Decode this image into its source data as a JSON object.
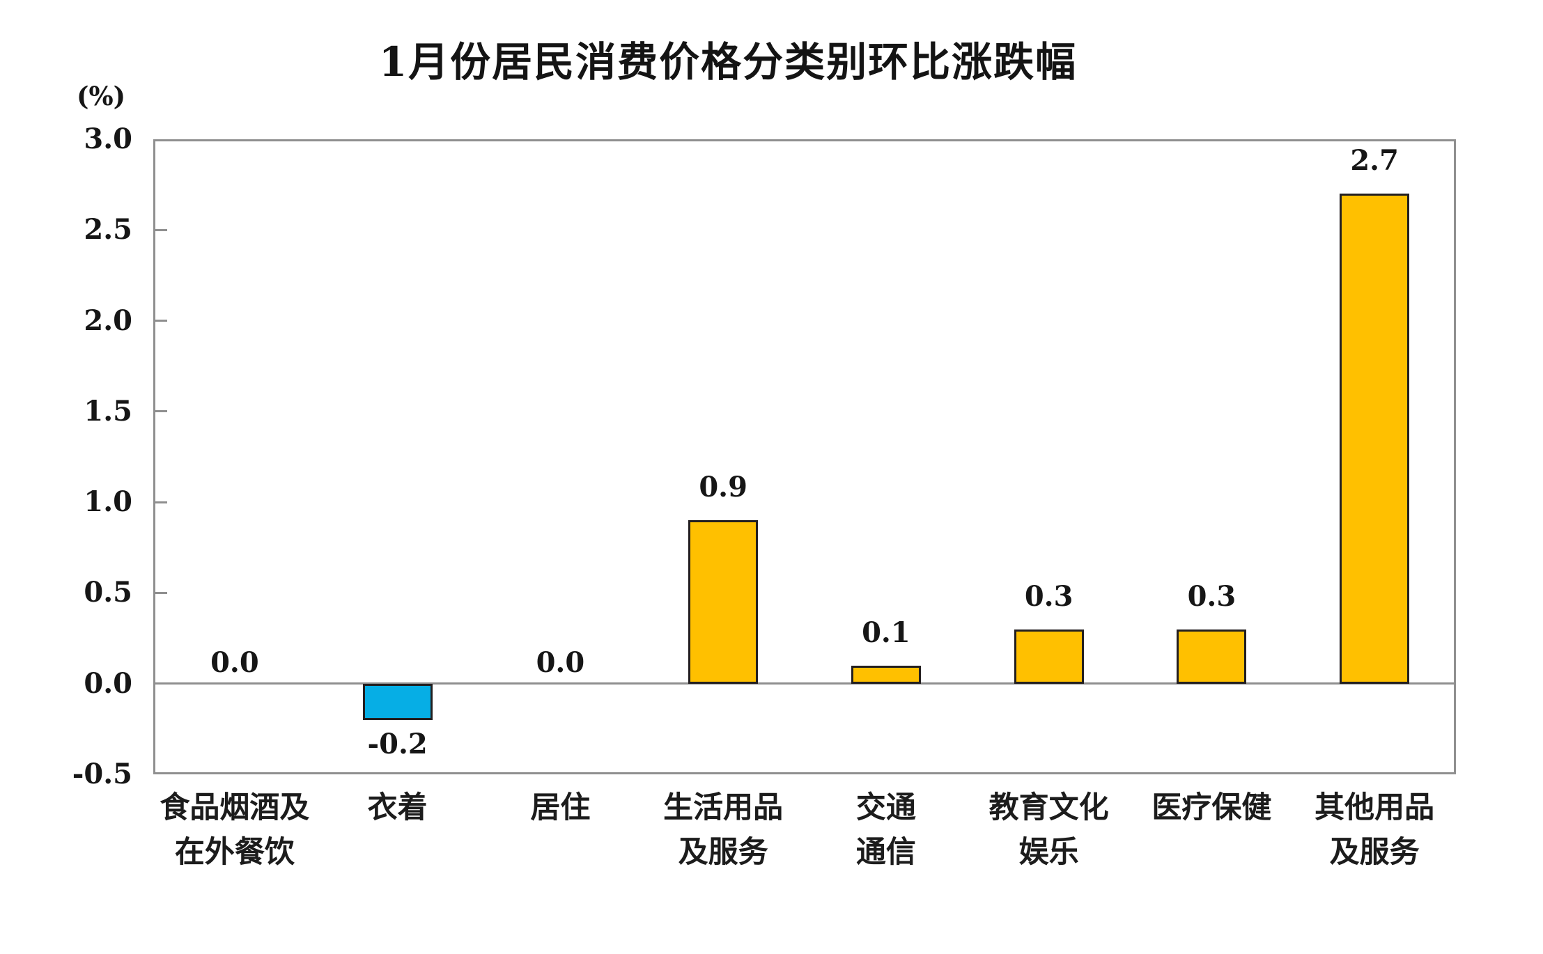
{
  "chart_data": {
    "type": "bar",
    "title": "1月份居民消费价格分类别环比涨跌幅",
    "unit_label": "(%)",
    "categories": [
      {
        "lines": [
          "食品烟酒及",
          "在外餐饮"
        ],
        "value": 0.0,
        "label": "0.0"
      },
      {
        "lines": [
          "衣着"
        ],
        "value": -0.2,
        "label": "-0.2"
      },
      {
        "lines": [
          "居住"
        ],
        "value": 0.0,
        "label": "0.0"
      },
      {
        "lines": [
          "生活用品",
          "及服务"
        ],
        "value": 0.9,
        "label": "0.9"
      },
      {
        "lines": [
          "交通",
          "通信"
        ],
        "value": 0.1,
        "label": "0.1"
      },
      {
        "lines": [
          "教育文化",
          "娱乐"
        ],
        "value": 0.3,
        "label": "0.3"
      },
      {
        "lines": [
          "医疗保健"
        ],
        "value": 0.3,
        "label": "0.3"
      },
      {
        "lines": [
          "其他用品",
          "及服务"
        ],
        "value": 2.7,
        "label": "2.7"
      }
    ],
    "ylim": [
      -0.5,
      3.0
    ],
    "ytick_step": 0.5,
    "yticks": [
      "3.0",
      "2.5",
      "2.0",
      "1.5",
      "1.0",
      "0.5",
      "0.0",
      "-0.5"
    ],
    "grid": false,
    "legend": "none",
    "colors": {
      "positive_bar": "#FFC000",
      "negative_bar": "#06AEE5",
      "bar_border": "#231f20",
      "axis": "#8f8f8f",
      "text": "#161616"
    }
  }
}
